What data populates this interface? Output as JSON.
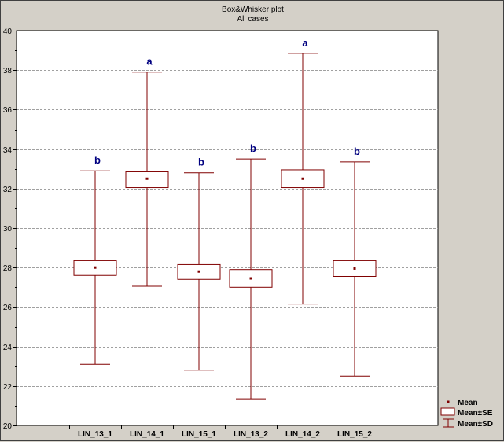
{
  "chart_data": {
    "type": "boxplot",
    "title": "Box&Whisker plot",
    "subtitle": "All cases",
    "xlabel": "",
    "ylabel": "",
    "ylim": [
      20,
      40
    ],
    "yticks": [
      20,
      22,
      24,
      26,
      28,
      30,
      32,
      34,
      36,
      38,
      40
    ],
    "grid": true,
    "legend_position": "bottom-right",
    "categories": [
      "LIN_13_1",
      "LIN_14_1",
      "LIN_15_1",
      "LIN_13_2",
      "LIN_14_2",
      "LIN_15_2"
    ],
    "series": [
      {
        "category": "LIN_13_1",
        "mean": 28.0,
        "se_low": 27.6,
        "se_high": 28.35,
        "sd_low": 23.1,
        "sd_high": 32.9,
        "group": "b"
      },
      {
        "category": "LIN_14_1",
        "mean": 32.5,
        "se_low": 32.05,
        "se_high": 32.85,
        "sd_low": 27.05,
        "sd_high": 37.9,
        "group": "a"
      },
      {
        "category": "LIN_15_1",
        "mean": 27.8,
        "se_low": 27.4,
        "se_high": 28.15,
        "sd_low": 22.8,
        "sd_high": 32.8,
        "group": "b"
      },
      {
        "category": "LIN_13_2",
        "mean": 27.45,
        "se_low": 27.0,
        "se_high": 27.9,
        "sd_low": 21.35,
        "sd_high": 33.5,
        "group": "b"
      },
      {
        "category": "LIN_14_2",
        "mean": 32.5,
        "se_low": 32.05,
        "se_high": 32.95,
        "sd_low": 26.15,
        "sd_high": 38.85,
        "group": "a"
      },
      {
        "category": "LIN_15_2",
        "mean": 27.95,
        "se_low": 27.55,
        "se_high": 28.35,
        "sd_low": 22.5,
        "sd_high": 33.35,
        "group": "b"
      }
    ],
    "legend": [
      {
        "key": "mean",
        "label": "Mean"
      },
      {
        "key": "se",
        "label": "Mean±SE"
      },
      {
        "key": "sd",
        "label": "Mean±SD"
      }
    ],
    "colors": {
      "box": "#800000",
      "mean_marker": "#800000",
      "group_label": "#000080",
      "grid": "#a0a0a0",
      "background": "#d4d0c8",
      "plot_bg": "#ffffff"
    }
  }
}
